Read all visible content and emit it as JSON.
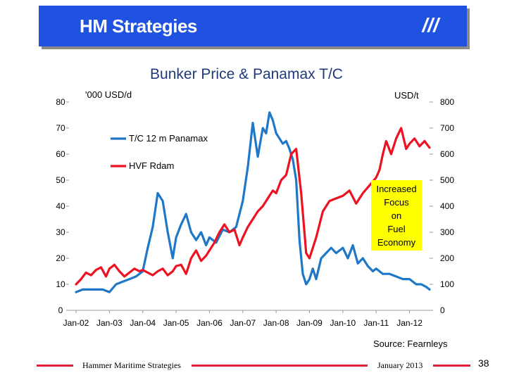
{
  "header": {
    "title": "HM Strategies",
    "mark": "///"
  },
  "callout": {
    "lines": [
      "Increased",
      "Focus",
      "on",
      "Fuel",
      "Economy"
    ]
  },
  "source": "Source: Fearnleys",
  "footer": {
    "company": "Hammer Maritime Strategies",
    "date": "January 2013",
    "page": "38"
  },
  "colors": {
    "banner": "#1f52e0",
    "tc_line": "#1f77c8",
    "bunker_line": "#ee1122",
    "callout": "#ffff00",
    "footer_rule": "#e0203a"
  },
  "chart_data": {
    "type": "line",
    "title": "Bunker Price & Panamax T/C",
    "ylabel_left": "'000 USD/d",
    "ylabel_right": "USD/t",
    "x_range": [
      2002,
      2012.6
    ],
    "x_ticks": [
      "Jan-02",
      "Jan-03",
      "Jan-04",
      "Jan-05",
      "Jan-06",
      "Jan-07",
      "Jan-08",
      "Jan-09",
      "Jan-10",
      "Jan-11",
      "Jan-12"
    ],
    "y_left_ticks": [
      0,
      10,
      20,
      30,
      40,
      50,
      60,
      70,
      80
    ],
    "y_left_range": [
      0,
      80
    ],
    "y_right_ticks": [
      0,
      100,
      200,
      300,
      400,
      500,
      600,
      700,
      800
    ],
    "y_right_range": [
      0,
      800
    ],
    "legend": [
      "T/C 12 m Panamax",
      "HVF Rdam"
    ],
    "series": [
      {
        "name": "T/C 12 m Panamax",
        "axis": "left",
        "x": [
          2002.0,
          2002.2,
          2002.4,
          2002.6,
          2002.8,
          2003.0,
          2003.2,
          2003.4,
          2003.6,
          2003.8,
          2003.9,
          2004.0,
          2004.15,
          2004.3,
          2004.45,
          2004.6,
          2004.75,
          2004.9,
          2005.0,
          2005.15,
          2005.3,
          2005.45,
          2005.6,
          2005.75,
          2005.9,
          2006.0,
          2006.2,
          2006.4,
          2006.6,
          2006.8,
          2007.0,
          2007.15,
          2007.3,
          2007.45,
          2007.6,
          2007.7,
          2007.8,
          2007.9,
          2008.0,
          2008.1,
          2008.2,
          2008.3,
          2008.4,
          2008.5,
          2008.6,
          2008.7,
          2008.8,
          2008.9,
          2009.0,
          2009.1,
          2009.2,
          2009.35,
          2009.5,
          2009.65,
          2009.8,
          2010.0,
          2010.15,
          2010.3,
          2010.45,
          2010.6,
          2010.75,
          2010.9,
          2011.0,
          2011.2,
          2011.4,
          2011.6,
          2011.8,
          2012.0,
          2012.2,
          2012.35,
          2012.5,
          2012.6
        ],
        "values": [
          7,
          8,
          8,
          8,
          8,
          7,
          10,
          11,
          12,
          13,
          14,
          15,
          24,
          32,
          45,
          42,
          30,
          20,
          28,
          33,
          37,
          30,
          27,
          30,
          25,
          28,
          26,
          31,
          30,
          32,
          42,
          55,
          72,
          59,
          70,
          68,
          76,
          73,
          68,
          66,
          64,
          65,
          62,
          58,
          50,
          27,
          14,
          10,
          12,
          16,
          12,
          20,
          22,
          24,
          22,
          24,
          20,
          25,
          18,
          20,
          17,
          15,
          16,
          14,
          14,
          13,
          12,
          12,
          10,
          10,
          9,
          8
        ]
      },
      {
        "name": "HVF Rdam",
        "axis": "right",
        "x": [
          2002.0,
          2002.15,
          2002.3,
          2002.45,
          2002.6,
          2002.75,
          2002.9,
          2003.0,
          2003.15,
          2003.3,
          2003.45,
          2003.6,
          2003.75,
          2003.9,
          2004.0,
          2004.15,
          2004.3,
          2004.45,
          2004.6,
          2004.75,
          2004.9,
          2005.0,
          2005.15,
          2005.3,
          2005.45,
          2005.6,
          2005.75,
          2005.9,
          2006.0,
          2006.15,
          2006.3,
          2006.45,
          2006.6,
          2006.75,
          2006.9,
          2007.0,
          2007.15,
          2007.3,
          2007.45,
          2007.6,
          2007.75,
          2007.9,
          2008.0,
          2008.15,
          2008.3,
          2008.45,
          2008.6,
          2008.75,
          2008.9,
          2009.0,
          2009.2,
          2009.4,
          2009.6,
          2009.8,
          2010.0,
          2010.2,
          2010.4,
          2010.6,
          2010.8,
          2011.0,
          2011.1,
          2011.2,
          2011.3,
          2011.45,
          2011.6,
          2011.75,
          2011.9,
          2012.0,
          2012.15,
          2012.3,
          2012.45,
          2012.6
        ],
        "values": [
          100,
          120,
          145,
          135,
          155,
          165,
          130,
          160,
          175,
          150,
          130,
          145,
          160,
          150,
          155,
          145,
          135,
          150,
          160,
          135,
          150,
          170,
          175,
          140,
          200,
          230,
          190,
          210,
          230,
          260,
          300,
          330,
          300,
          310,
          250,
          280,
          320,
          350,
          380,
          400,
          430,
          460,
          450,
          500,
          520,
          600,
          620,
          450,
          220,
          200,
          280,
          380,
          420,
          430,
          440,
          460,
          410,
          450,
          480,
          510,
          540,
          600,
          650,
          600,
          660,
          700,
          620,
          640,
          660,
          630,
          650,
          625
        ]
      }
    ]
  }
}
